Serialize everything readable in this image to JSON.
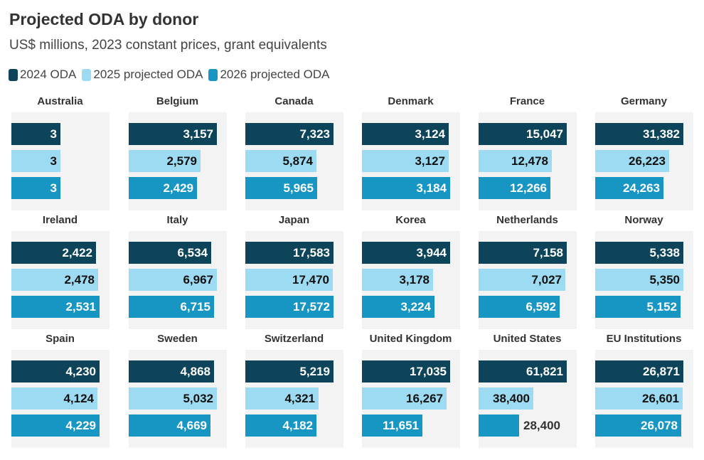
{
  "chart_data": {
    "type": "bar",
    "orientation": "horizontal",
    "layout": "small-multiples",
    "title": "Projected ODA by donor",
    "subtitle": "US$ millions, 2023 constant prices, grant equivalents",
    "legend_position": "top-left",
    "series": [
      {
        "name": "2024 ODA",
        "color": "#0d4459"
      },
      {
        "name": "2025 projected ODA",
        "color": "#9ddbf2"
      },
      {
        "name": "2026 projected ODA",
        "color": "#1896c3"
      }
    ],
    "panels": [
      {
        "name": "Australia",
        "values": [
          3,
          3,
          3
        ],
        "labels": [
          "3",
          "3",
          "3"
        ],
        "xlim": [
          0,
          6
        ]
      },
      {
        "name": "Belgium",
        "values": [
          3157,
          2579,
          2429
        ],
        "labels": [
          "3,157",
          "2,579",
          "2,429"
        ]
      },
      {
        "name": "Canada",
        "values": [
          7323,
          5874,
          5965
        ],
        "labels": [
          "7,323",
          "5,874",
          "5,965"
        ]
      },
      {
        "name": "Denmark",
        "values": [
          3124,
          3127,
          3184
        ],
        "labels": [
          "3,124",
          "3,127",
          "3,184"
        ]
      },
      {
        "name": "France",
        "values": [
          15047,
          12478,
          12266
        ],
        "labels": [
          "15,047",
          "12,478",
          "12,266"
        ]
      },
      {
        "name": "Germany",
        "values": [
          31382,
          26223,
          24263
        ],
        "labels": [
          "31,382",
          "26,223",
          "24,263"
        ]
      },
      {
        "name": "Ireland",
        "values": [
          2422,
          2478,
          2531
        ],
        "labels": [
          "2,422",
          "2,478",
          "2,531"
        ]
      },
      {
        "name": "Italy",
        "values": [
          6534,
          6967,
          6715
        ],
        "labels": [
          "6,534",
          "6,967",
          "6,715"
        ]
      },
      {
        "name": "Japan",
        "values": [
          17583,
          17470,
          17572
        ],
        "labels": [
          "17,583",
          "17,470",
          "17,572"
        ]
      },
      {
        "name": "Korea",
        "values": [
          3944,
          3178,
          3224
        ],
        "labels": [
          "3,944",
          "3,178",
          "3,224"
        ]
      },
      {
        "name": "Netherlands",
        "values": [
          7158,
          7027,
          6592
        ],
        "labels": [
          "7,158",
          "7,027",
          "6,592"
        ]
      },
      {
        "name": "Norway",
        "values": [
          5338,
          5350,
          5152
        ],
        "labels": [
          "5,338",
          "5,350",
          "5,152"
        ]
      },
      {
        "name": "Spain",
        "values": [
          4230,
          4124,
          4229
        ],
        "labels": [
          "4,230",
          "4,124",
          "4,229"
        ]
      },
      {
        "name": "Sweden",
        "values": [
          4868,
          5032,
          4669
        ],
        "labels": [
          "4,868",
          "5,032",
          "4,669"
        ]
      },
      {
        "name": "Switzerland",
        "values": [
          5219,
          4321,
          4182
        ],
        "labels": [
          "5,219",
          "4,321",
          "4,182"
        ]
      },
      {
        "name": "United Kingdom",
        "values": [
          17035,
          16267,
          11651
        ],
        "labels": [
          "17,035",
          "16,267",
          "11,651"
        ]
      },
      {
        "name": "United States",
        "values": [
          61821,
          38400,
          28400
        ],
        "labels": [
          "61,821",
          "38,400",
          "28,400"
        ]
      },
      {
        "name": "EU Institutions",
        "values": [
          26871,
          26601,
          26078
        ],
        "labels": [
          "26,871",
          "26,601",
          "26,078"
        ]
      }
    ]
  }
}
